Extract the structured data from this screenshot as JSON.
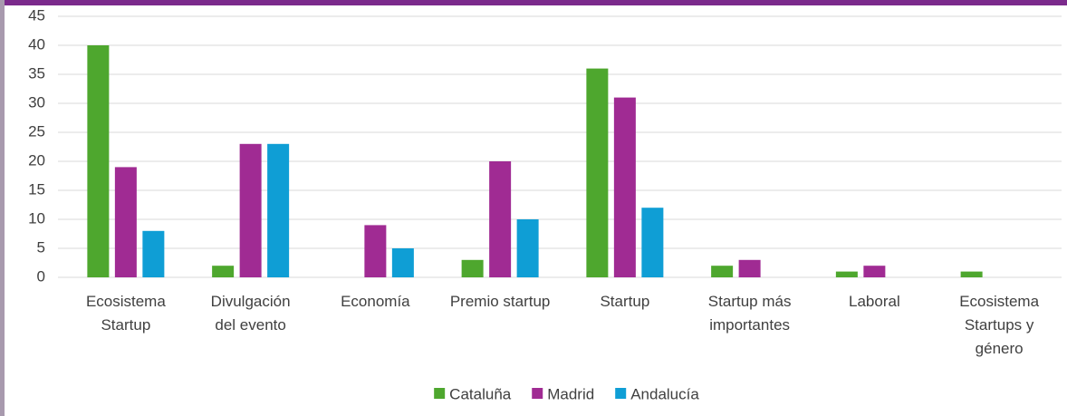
{
  "chart_data": {
    "type": "bar",
    "categories": [
      "Ecosistema\nStartup",
      "Divulgación\ndel evento",
      "Economía",
      "Premio startup",
      "Startup",
      "Startup más\nimportantes",
      "Laboral",
      "Ecosistema\nStartups y\ngénero"
    ],
    "series": [
      {
        "name": "Cataluña",
        "color": "#4ea72e",
        "values": [
          40,
          2,
          0,
          3,
          36,
          2,
          1,
          1
        ]
      },
      {
        "name": "Madrid",
        "color": "#a02b93",
        "values": [
          19,
          23,
          9,
          20,
          31,
          3,
          2,
          0
        ]
      },
      {
        "name": "Andalucía",
        "color": "#0f9ed5",
        "values": [
          8,
          23,
          5,
          10,
          12,
          0,
          0,
          0
        ]
      }
    ],
    "ylim": [
      0,
      45
    ],
    "yticks": [
      0,
      5,
      10,
      15,
      20,
      25,
      30,
      35,
      40,
      45
    ],
    "grid": true,
    "legend": "bottom"
  }
}
